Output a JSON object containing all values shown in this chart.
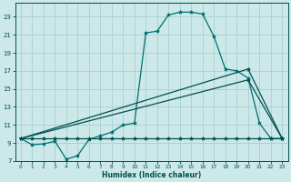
{
  "xlabel": "Humidex (Indice chaleur)",
  "xlim": [
    -0.5,
    23.5
  ],
  "ylim": [
    7,
    24.5
  ],
  "yticks": [
    7,
    9,
    11,
    13,
    15,
    17,
    19,
    21,
    23
  ],
  "xticks": [
    0,
    1,
    2,
    3,
    4,
    5,
    6,
    7,
    8,
    9,
    10,
    11,
    12,
    13,
    14,
    15,
    16,
    17,
    18,
    19,
    20,
    21,
    22,
    23
  ],
  "bg_color": "#cce8e8",
  "grid_color": "#aad4d4",
  "line_color_dark": "#005050",
  "line_color_medium": "#007070",
  "curve1_x": [
    0,
    1,
    2,
    3,
    4,
    5,
    6,
    7,
    8,
    9,
    10,
    11,
    12,
    13,
    14,
    15,
    16,
    17,
    18,
    19,
    20,
    21,
    22,
    23
  ],
  "curve1_y": [
    9.5,
    8.8,
    8.9,
    9.2,
    7.2,
    7.6,
    9.4,
    9.8,
    10.2,
    11.0,
    11.2,
    21.2,
    21.4,
    23.2,
    23.5,
    23.5,
    23.3,
    20.8,
    17.2,
    17.0,
    16.2,
    11.2,
    9.5,
    9.5
  ],
  "curve2_x": [
    0,
    1,
    2,
    3,
    4,
    5,
    6,
    7,
    8,
    9,
    10,
    11,
    12,
    13,
    14,
    15,
    16,
    17,
    18,
    19,
    20,
    21,
    22,
    23
  ],
  "curve2_y": [
    9.5,
    9.5,
    9.5,
    9.5,
    9.5,
    9.5,
    9.5,
    9.5,
    9.5,
    9.5,
    9.5,
    9.5,
    9.5,
    9.5,
    9.5,
    9.5,
    9.5,
    9.5,
    9.5,
    9.5,
    9.5,
    9.5,
    9.5,
    9.5
  ],
  "curve3_x": [
    0,
    20,
    23
  ],
  "curve3_y": [
    9.5,
    17.2,
    9.5
  ],
  "curve4_x": [
    0,
    20,
    23
  ],
  "curve4_y": [
    9.5,
    16.0,
    9.5
  ]
}
